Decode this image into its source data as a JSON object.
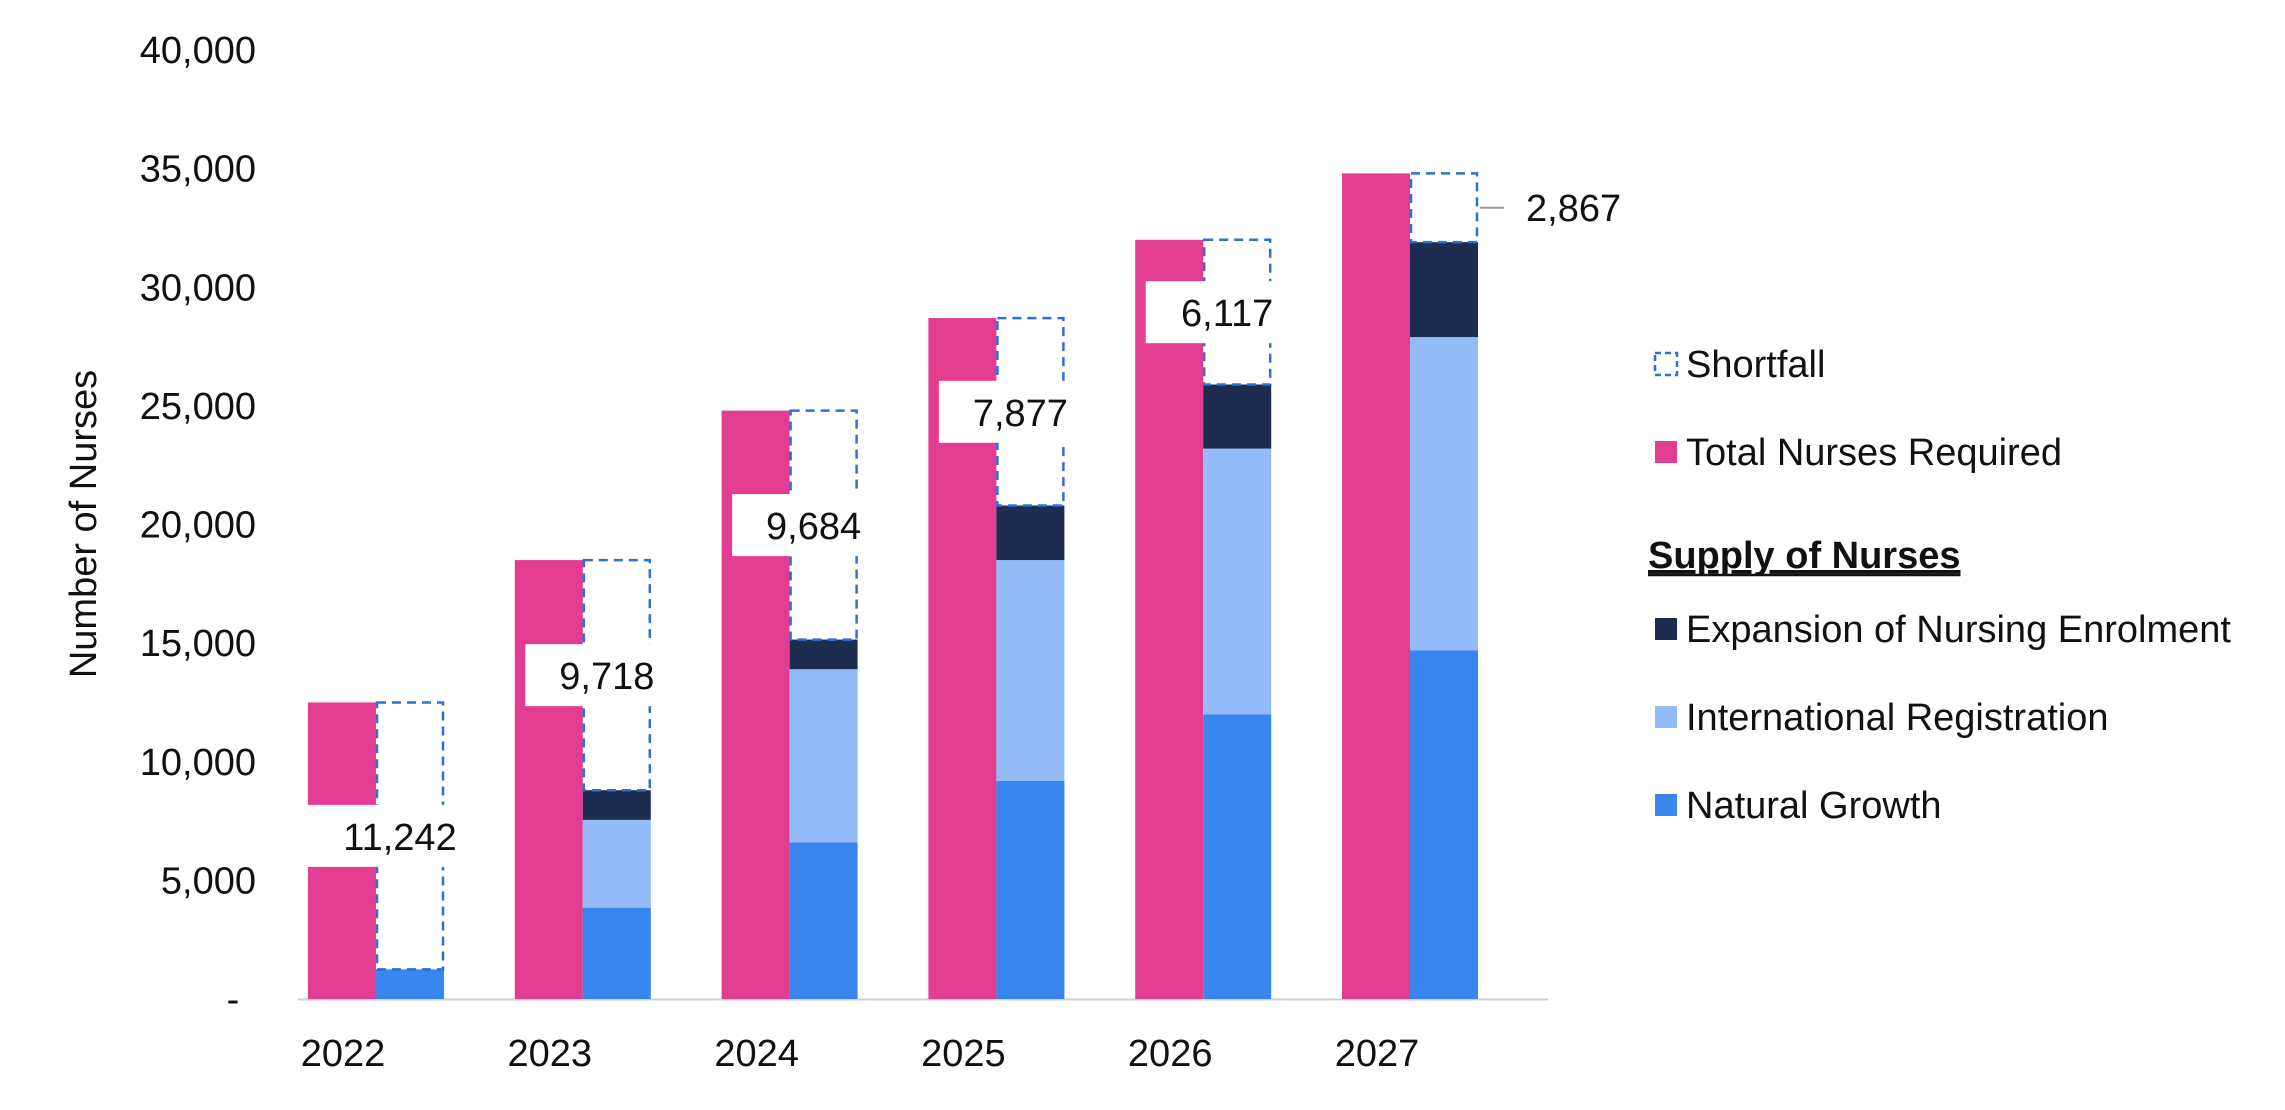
{
  "chart_data": {
    "type": "bar",
    "title": "",
    "xlabel": "",
    "ylabel": "Number of Nurses",
    "ylim": [
      0,
      40000
    ],
    "yticks": [
      {
        "value": 0,
        "label": "-"
      },
      {
        "value": 5000,
        "label": "5,000"
      },
      {
        "value": 10000,
        "label": "10,000"
      },
      {
        "value": 15000,
        "label": "15,000"
      },
      {
        "value": 20000,
        "label": "20,000"
      },
      {
        "value": 25000,
        "label": "25,000"
      },
      {
        "value": 30000,
        "label": "30,000"
      },
      {
        "value": 35000,
        "label": "35,000"
      },
      {
        "value": 40000,
        "label": "40,000"
      }
    ],
    "grid": false,
    "legend_position": "right",
    "categories": [
      "2022",
      "2023",
      "2024",
      "2025",
      "2026",
      "2027"
    ],
    "required": {
      "name": "Total Nurses Required",
      "color": "#E33D92",
      "values": [
        12500,
        18500,
        24800,
        28700,
        32000,
        34800
      ]
    },
    "supply_series": [
      {
        "name": "Natural Growth",
        "color": "#3A86EF",
        "values": [
          1250,
          3850,
          6600,
          9200,
          12000,
          14700
        ]
      },
      {
        "name": "International Registration",
        "color": "#93BBF7",
        "values": [
          0,
          3700,
          7300,
          9300,
          11200,
          13200
        ]
      },
      {
        "name": "Expansion of Nursing Enrolment",
        "color": "#1C2D4F",
        "values": [
          0,
          1250,
          1250,
          2300,
          2700,
          4000
        ]
      }
    ],
    "shortfall": {
      "name": "Shortfall",
      "color": "#2F6FD6",
      "labels": [
        "11,242",
        "9,718",
        "9,684",
        "7,877",
        "6,117",
        "2,867"
      ]
    },
    "legend_items": [
      {
        "label": "Shortfall",
        "color": "#2F6FD6",
        "style": "dashed"
      },
      {
        "label": "Total Nurses Required",
        "color": "#E33D92",
        "style": "solid"
      },
      {
        "label": "Supply of Nurses",
        "style": "heading"
      },
      {
        "label": "Expansion of Nursing Enrolment",
        "color": "#1C2D4F",
        "style": "solid"
      },
      {
        "label": "International Registration",
        "color": "#93BBF7",
        "style": "solid"
      },
      {
        "label": "Natural Growth",
        "color": "#3A86EF",
        "style": "solid"
      }
    ]
  }
}
